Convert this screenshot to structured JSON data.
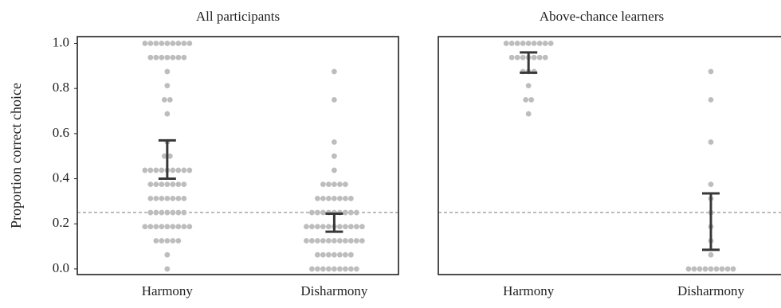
{
  "chart_data": [
    {
      "type": "swarm",
      "title": "All participants",
      "ylabel": "Proportion correct choice",
      "categories": [
        "Harmony",
        "Disharmony"
      ],
      "values": [
        [
          1,
          1,
          1,
          1,
          1,
          1,
          1,
          1,
          1,
          0.9375,
          0.9375,
          0.9375,
          0.9375,
          0.9375,
          0.9375,
          0.9375,
          0.875,
          0.8125,
          0.75,
          0.75,
          0.6875,
          0.5625,
          0.5,
          0.5,
          0.4375,
          0.4375,
          0.4375,
          0.4375,
          0.4375,
          0.4375,
          0.4375,
          0.4375,
          0.4375,
          0.375,
          0.375,
          0.375,
          0.375,
          0.375,
          0.375,
          0.375,
          0.3125,
          0.3125,
          0.3125,
          0.3125,
          0.3125,
          0.3125,
          0.3125,
          0.25,
          0.25,
          0.25,
          0.25,
          0.25,
          0.25,
          0.25,
          0.1875,
          0.1875,
          0.1875,
          0.1875,
          0.1875,
          0.1875,
          0.1875,
          0.1875,
          0.1875,
          0.125,
          0.125,
          0.125,
          0.125,
          0.125,
          0.0625,
          0
        ],
        [
          0.875,
          0.75,
          0.5625,
          0.5,
          0.4375,
          0.375,
          0.375,
          0.375,
          0.375,
          0.375,
          0.3125,
          0.3125,
          0.3125,
          0.3125,
          0.3125,
          0.3125,
          0.3125,
          0.25,
          0.25,
          0.25,
          0.25,
          0.25,
          0.25,
          0.25,
          0.25,
          0.25,
          0.1875,
          0.1875,
          0.1875,
          0.1875,
          0.1875,
          0.1875,
          0.1875,
          0.1875,
          0.1875,
          0.1875,
          0.1875,
          0.125,
          0.125,
          0.125,
          0.125,
          0.125,
          0.125,
          0.125,
          0.125,
          0.125,
          0.125,
          0.125,
          0.0625,
          0.0625,
          0.0625,
          0.0625,
          0.0625,
          0.0625,
          0.0625,
          0,
          0,
          0,
          0,
          0,
          0,
          0,
          0,
          0
        ]
      ],
      "error_bars": [
        [
          0.4,
          0.57
        ],
        [
          0.165,
          0.245
        ]
      ],
      "hline": 0.25,
      "color": "#bdbdbd",
      "error_color": "#383838",
      "ylim": [
        -0.025,
        1.03
      ],
      "yticks": [
        {
          "value": 0,
          "label": "0.0"
        },
        0.2,
        0.4,
        0.6,
        0.8,
        {
          "value": 1,
          "label": "1.0"
        }
      ]
    },
    {
      "type": "swarm",
      "title": "Above-chance learners",
      "categories": [
        "Harmony",
        "Disharmony"
      ],
      "values": [
        [
          1,
          1,
          1,
          1,
          1,
          1,
          1,
          1,
          1,
          0.9375,
          0.9375,
          0.9375,
          0.9375,
          0.9375,
          0.9375,
          0.9375,
          0.875,
          0.875,
          0.875,
          0.8125,
          0.75,
          0.75,
          0.6875
        ],
        [
          0.875,
          0.75,
          0.5625,
          0.375,
          0.3125,
          0.25,
          0.1875,
          0.125,
          0.0625,
          0,
          0,
          0,
          0,
          0,
          0,
          0,
          0,
          0
        ]
      ],
      "error_bars": [
        [
          0.87,
          0.96
        ],
        [
          0.085,
          0.335
        ]
      ],
      "hline": 0.25,
      "color": "#bdbdbd",
      "error_color": "#383838",
      "ylim": [
        -0.025,
        1.03
      ]
    }
  ]
}
